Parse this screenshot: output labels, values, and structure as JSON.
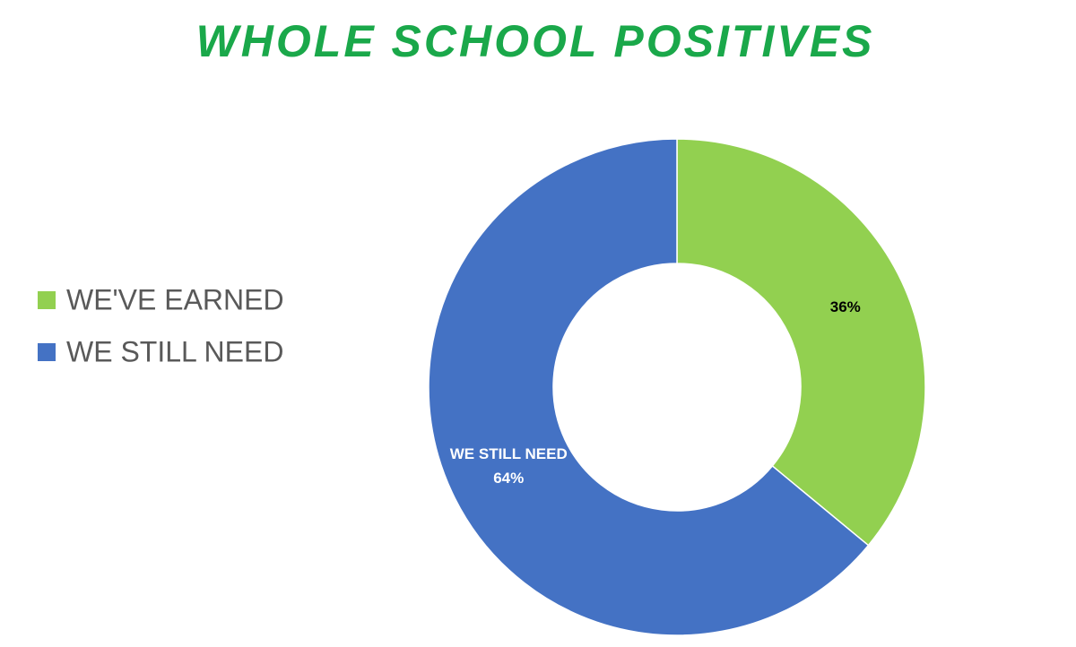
{
  "chart_data": {
    "type": "donut",
    "title": "WHOLE SCHOOL POSITIVES",
    "categories": [
      "WE'VE EARNED",
      "WE STILL NEED"
    ],
    "values": [
      36,
      64
    ],
    "value_labels": [
      "36%",
      "64%"
    ],
    "colors": [
      "#92d050",
      "#4472c4"
    ],
    "legend": "left"
  }
}
